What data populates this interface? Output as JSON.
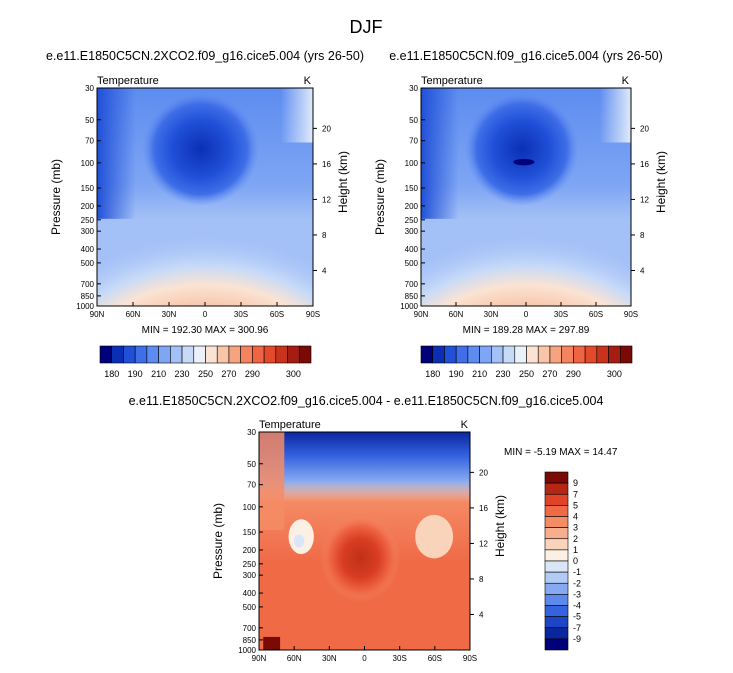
{
  "page_title": "DJF",
  "chart_data": [
    {
      "id": "upper-left",
      "type": "heatmap",
      "title": "e.e11.E1850C5CN.2XCO2.f09_g16.cice5.004 (yrs 26-50)",
      "variable": "Temperature",
      "units": "K",
      "ylabel": "Pressure (mb)",
      "ylabel_right": "Height (km)",
      "x_ticks": [
        "90N",
        "60N",
        "30N",
        "0",
        "30S",
        "60S",
        "90S"
      ],
      "y_ticks": [
        "30",
        "50",
        "70",
        "100",
        "150",
        "200",
        "250",
        "300",
        "400",
        "500",
        "700",
        "850",
        "1000"
      ],
      "height_ticks": [
        "20",
        "16",
        "12",
        "8",
        "4"
      ],
      "ylim_mb": [
        1000,
        30
      ],
      "stats": "MIN = 192.30   MAX = 300.96",
      "min": 192.3,
      "max": 300.96
    },
    {
      "id": "upper-right",
      "type": "heatmap",
      "title": "e.e11.E1850C5CN.f09_g16.cice5.004 (yrs 26-50)",
      "variable": "Temperature",
      "units": "K",
      "ylabel": "Pressure (mb)",
      "ylabel_right": "Height (km)",
      "x_ticks": [
        "90N",
        "60N",
        "30N",
        "0",
        "30S",
        "60S",
        "90S"
      ],
      "y_ticks": [
        "30",
        "50",
        "70",
        "100",
        "150",
        "200",
        "250",
        "300",
        "400",
        "500",
        "700",
        "850",
        "1000"
      ],
      "height_ticks": [
        "20",
        "16",
        "12",
        "8",
        "4"
      ],
      "ylim_mb": [
        1000,
        30
      ],
      "stats": "MIN = 189.28   MAX = 297.89",
      "min": 189.28,
      "max": 297.89
    },
    {
      "id": "difference",
      "type": "heatmap",
      "title": "e.e11.E1850C5CN.2XCO2.f09_g16.cice5.004 - e.e11.E1850C5CN.f09_g16.cice5.004",
      "variable": "Temperature",
      "units": "K",
      "ylabel": "Pressure (mb)",
      "ylabel_right": "Height (km)",
      "x_ticks": [
        "90N",
        "60N",
        "30N",
        "0",
        "30S",
        "60S",
        "90S"
      ],
      "y_ticks": [
        "30",
        "50",
        "70",
        "100",
        "150",
        "200",
        "250",
        "300",
        "400",
        "500",
        "700",
        "850",
        "1000"
      ],
      "height_ticks": [
        "20",
        "16",
        "12",
        "8",
        "4"
      ],
      "ylim_mb": [
        1000,
        30
      ],
      "stats": "MIN =  -5.19   MAX =  14.47",
      "min": -5.19,
      "max": 14.47
    }
  ],
  "colorbar_abs": {
    "labels": [
      "180",
      "190",
      "210",
      "230",
      "250",
      "270",
      "290",
      "300"
    ],
    "colors": [
      "#00007a",
      "#0a2fb5",
      "#2050d8",
      "#3f6ee8",
      "#5d8cf0",
      "#7fa6f4",
      "#a3c0f7",
      "#c7daf8",
      "#eaf1f9",
      "#fbe3d3",
      "#f8c5a8",
      "#f5a47f",
      "#f3845e",
      "#ef6543",
      "#e34a2c",
      "#c9331c",
      "#a51c12",
      "#7a0a05"
    ]
  },
  "colorbar_diff": {
    "labels": [
      "9",
      "7",
      "5",
      "4",
      "3",
      "2",
      "1",
      "0",
      "-1",
      "-2",
      "-3",
      "-4",
      "-5",
      "-7",
      "-9"
    ],
    "colors": [
      "#7a0a05",
      "#b52714",
      "#e04428",
      "#f06a46",
      "#f48c66",
      "#f7ae8c",
      "#fad3bb",
      "#fcefe3",
      "#d8e6f7",
      "#b1cbf4",
      "#86aaf1",
      "#5d88ec",
      "#3563e0",
      "#1e45c6",
      "#0a26a0",
      "#00007a"
    ]
  }
}
